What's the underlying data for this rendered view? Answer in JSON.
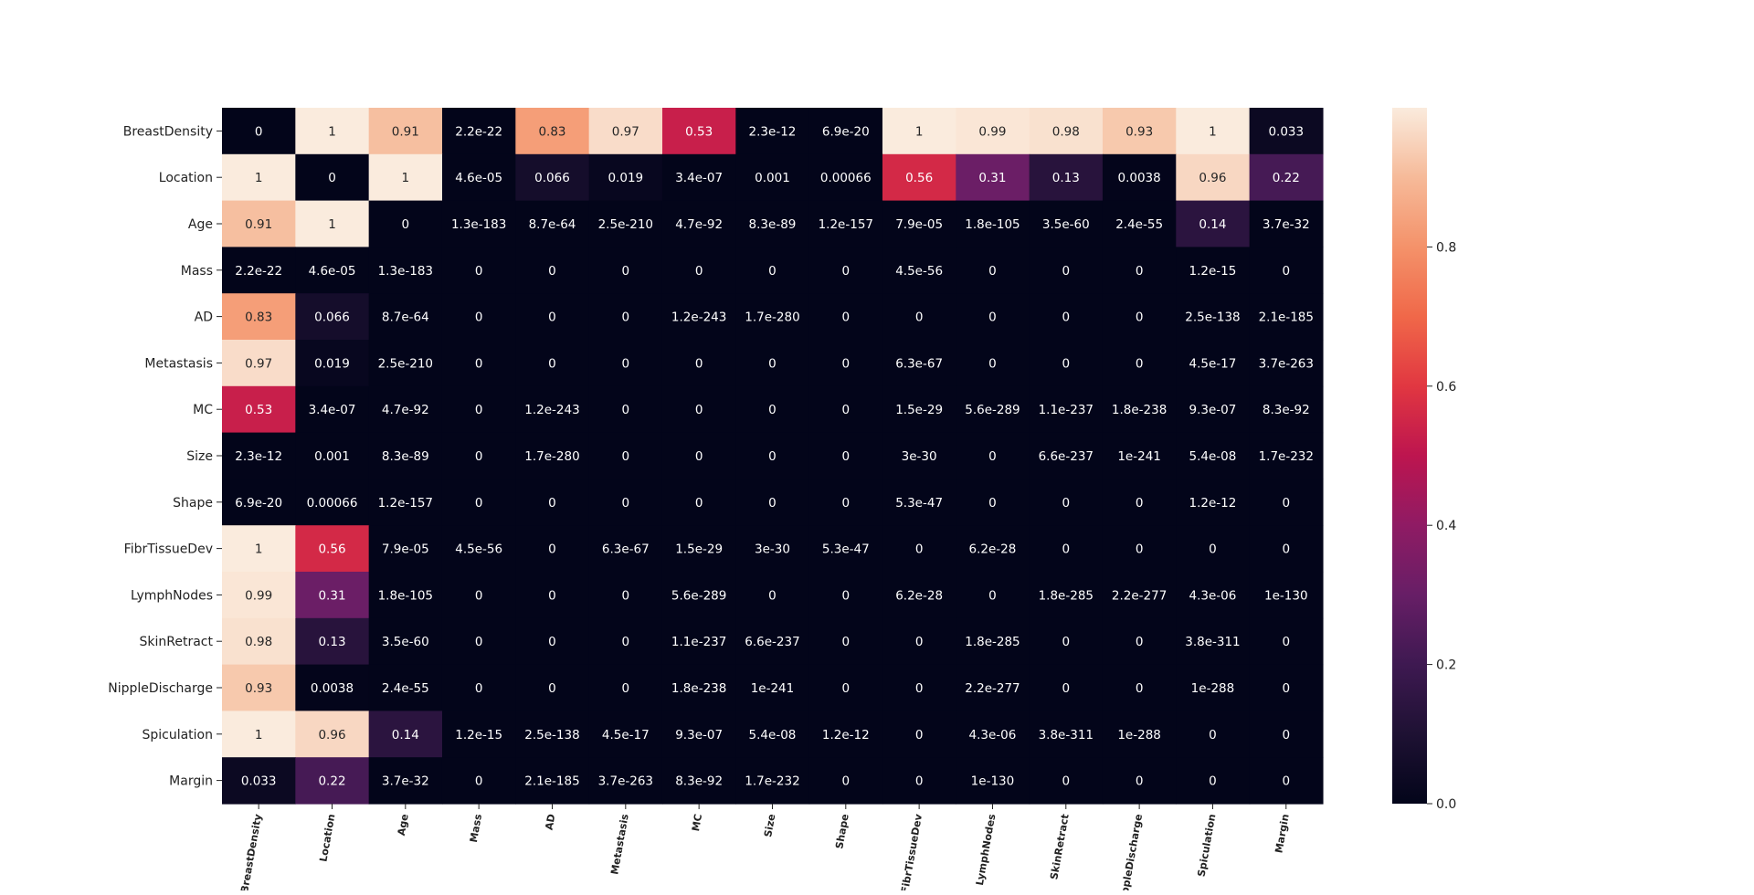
{
  "chart_data": {
    "type": "heatmap",
    "labels": [
      "BreastDensity",
      "Location",
      "Age",
      "Mass",
      "AD",
      "Metastasis",
      "MC",
      "Size",
      "Shape",
      "FibrTissueDev",
      "LymphNodes",
      "SkinRetract",
      "NippleDischarge",
      "Spiculation",
      "Margin"
    ],
    "matrix_text": [
      [
        "0",
        "1",
        "0.91",
        "2.2e-22",
        "0.83",
        "0.97",
        "0.53",
        "2.3e-12",
        "6.9e-20",
        "1",
        "0.99",
        "0.98",
        "0.93",
        "1",
        "0.033"
      ],
      [
        "1",
        "0",
        "1",
        "4.6e-05",
        "0.066",
        "0.019",
        "3.4e-07",
        "0.001",
        "0.00066",
        "0.56",
        "0.31",
        "0.13",
        "0.0038",
        "0.96",
        "0.22"
      ],
      [
        "0.91",
        "1",
        "0",
        "1.3e-183",
        "8.7e-64",
        "2.5e-210",
        "4.7e-92",
        "8.3e-89",
        "1.2e-157",
        "7.9e-05",
        "1.8e-105",
        "3.5e-60",
        "2.4e-55",
        "0.14",
        "3.7e-32"
      ],
      [
        "2.2e-22",
        "4.6e-05",
        "1.3e-183",
        "0",
        "0",
        "0",
        "0",
        "0",
        "0",
        "4.5e-56",
        "0",
        "0",
        "0",
        "1.2e-15",
        "0"
      ],
      [
        "0.83",
        "0.066",
        "8.7e-64",
        "0",
        "0",
        "0",
        "1.2e-243",
        "1.7e-280",
        "0",
        "0",
        "0",
        "0",
        "0",
        "2.5e-138",
        "2.1e-185"
      ],
      [
        "0.97",
        "0.019",
        "2.5e-210",
        "0",
        "0",
        "0",
        "0",
        "0",
        "0",
        "6.3e-67",
        "0",
        "0",
        "0",
        "4.5e-17",
        "3.7e-263"
      ],
      [
        "0.53",
        "3.4e-07",
        "4.7e-92",
        "0",
        "1.2e-243",
        "0",
        "0",
        "0",
        "0",
        "1.5e-29",
        "5.6e-289",
        "1.1e-237",
        "1.8e-238",
        "9.3e-07",
        "8.3e-92"
      ],
      [
        "2.3e-12",
        "0.001",
        "8.3e-89",
        "0",
        "1.7e-280",
        "0",
        "0",
        "0",
        "0",
        "3e-30",
        "0",
        "6.6e-237",
        "1e-241",
        "5.4e-08",
        "1.7e-232"
      ],
      [
        "6.9e-20",
        "0.00066",
        "1.2e-157",
        "0",
        "0",
        "0",
        "0",
        "0",
        "0",
        "5.3e-47",
        "0",
        "0",
        "0",
        "1.2e-12",
        "0"
      ],
      [
        "1",
        "0.56",
        "7.9e-05",
        "4.5e-56",
        "0",
        "6.3e-67",
        "1.5e-29",
        "3e-30",
        "5.3e-47",
        "0",
        "6.2e-28",
        "0",
        "0",
        "0",
        "0"
      ],
      [
        "0.99",
        "0.31",
        "1.8e-105",
        "0",
        "0",
        "0",
        "5.6e-289",
        "0",
        "0",
        "6.2e-28",
        "0",
        "1.8e-285",
        "2.2e-277",
        "4.3e-06",
        "1e-130"
      ],
      [
        "0.98",
        "0.13",
        "3.5e-60",
        "0",
        "0",
        "0",
        "1.1e-237",
        "6.6e-237",
        "0",
        "0",
        "1.8e-285",
        "0",
        "0",
        "3.8e-311",
        "0"
      ],
      [
        "0.93",
        "0.0038",
        "2.4e-55",
        "0",
        "0",
        "0",
        "1.8e-238",
        "1e-241",
        "0",
        "0",
        "2.2e-277",
        "0",
        "0",
        "1e-288",
        "0"
      ],
      [
        "1",
        "0.96",
        "0.14",
        "1.2e-15",
        "2.5e-138",
        "4.5e-17",
        "9.3e-07",
        "5.4e-08",
        "1.2e-12",
        "0",
        "4.3e-06",
        "3.8e-311",
        "1e-288",
        "0",
        "0"
      ],
      [
        "0.033",
        "0.22",
        "3.7e-32",
        "0",
        "2.1e-185",
        "3.7e-263",
        "8.3e-92",
        "1.7e-232",
        "0",
        "0",
        "1e-130",
        "0",
        "0",
        "0",
        "0"
      ]
    ],
    "value_range": [
      0,
      1
    ],
    "colormap": "rocket",
    "colorbar_ticks": [
      "0.0",
      "0.2",
      "0.4",
      "0.6",
      "0.8"
    ],
    "title": "",
    "xlabel": "",
    "ylabel": ""
  }
}
